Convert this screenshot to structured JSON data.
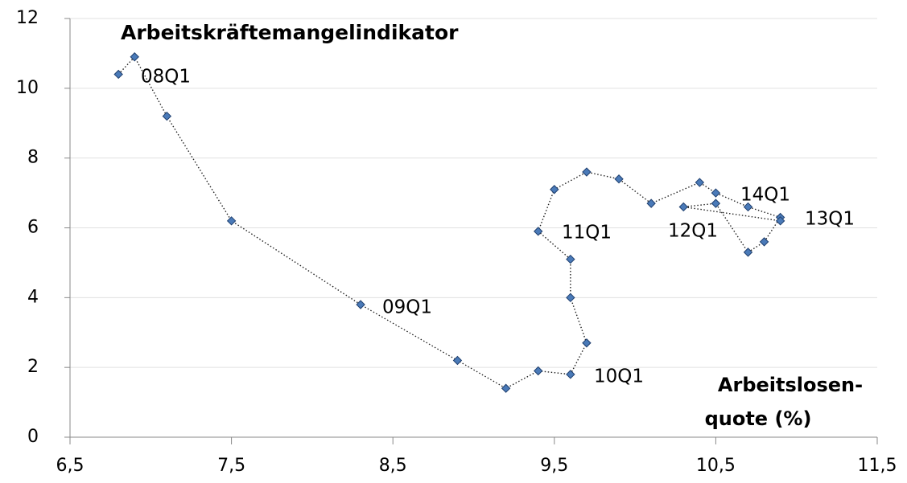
{
  "chart_data": {
    "type": "scatter",
    "title": "Arbeitskräftemangelindikator",
    "xlabel": [
      "Arbeitslosen-",
      "quote (%)"
    ],
    "x": [
      6.8,
      6.9,
      7.1,
      7.5,
      8.3,
      8.9,
      9.2,
      9.4,
      9.6,
      9.7,
      9.6,
      9.6,
      9.4,
      9.5,
      9.7,
      9.9,
      10.1,
      10.4,
      10.5,
      10.7,
      10.9,
      10.8,
      10.7,
      10.5,
      10.3,
      10.9
    ],
    "series": [
      {
        "color": "#4a7ab8",
        "values": [
          10.4,
          10.9,
          9.2,
          6.2,
          3.8,
          2.2,
          1.4,
          1.9,
          1.8,
          2.7,
          4.0,
          5.1,
          5.9,
          7.1,
          7.6,
          7.4,
          6.7,
          7.3,
          7.0,
          6.6,
          6.3,
          5.6,
          5.3,
          6.7,
          6.6,
          6.2
        ]
      }
    ],
    "annotations": [
      "08Q1",
      "09Q1",
      "10Q1",
      "11Q1",
      "12Q1",
      "13Q1",
      "14Q1"
    ],
    "xlim": [
      6.5,
      11.5
    ],
    "xticks": [
      {
        "value": 6.5,
        "label": "6,5"
      },
      {
        "value": 7.5,
        "label": "7,5"
      },
      {
        "value": 8.5,
        "label": "8,5"
      },
      {
        "value": 9.5,
        "label": "9,5"
      },
      {
        "value": 10.5,
        "label": "10,5"
      },
      {
        "value": 11.5,
        "label": "11,5"
      }
    ],
    "ylim": [
      0,
      12
    ],
    "yticks": [
      0,
      2,
      4,
      6,
      8,
      10,
      12
    ],
    "grid": true,
    "line_style": "dotted"
  }
}
